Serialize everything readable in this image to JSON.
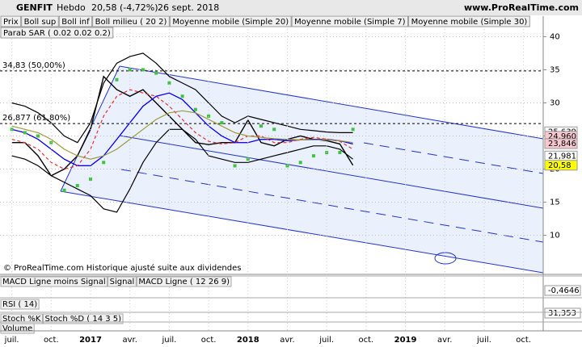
{
  "header": {
    "symbol": "GENFIT",
    "period": "Hebdo",
    "last": "20,58 (-4,72%)",
    "date": "26 sept. 2018",
    "site": "www.ProRealTime.com"
  },
  "footer": "© ProRealTime.com Historique ajusté suite aux dividendes",
  "chart_data": {
    "type": "line",
    "x": [
      0,
      1,
      2,
      3,
      4,
      5,
      6,
      7,
      8,
      9,
      10,
      11,
      12,
      13,
      14,
      15,
      16,
      17,
      18,
      19,
      20,
      21,
      22,
      23,
      24,
      25,
      26
    ],
    "xlim": [
      -0.9,
      40.5
    ],
    "xticks": [
      {
        "value": 0,
        "label": "juil."
      },
      {
        "value": 3,
        "label": "oct."
      },
      {
        "value": 6,
        "label": "2017"
      },
      {
        "value": 9,
        "label": "avr."
      },
      {
        "value": 12,
        "label": "juil."
      },
      {
        "value": 15,
        "label": "oct."
      },
      {
        "value": 18,
        "label": "2018"
      },
      {
        "value": 21,
        "label": "avr."
      },
      {
        "value": 24,
        "label": "juil."
      },
      {
        "value": 27,
        "label": "oct."
      },
      {
        "value": 30,
        "label": "2019"
      },
      {
        "value": 33,
        "label": "avr."
      },
      {
        "value": 36,
        "label": "juil."
      },
      {
        "value": 39,
        "label": "oct."
      }
    ],
    "ylim": [
      4.1,
      43.1
    ],
    "yticks": [
      10,
      15,
      20,
      25,
      30,
      35,
      40
    ],
    "grid": true,
    "series": [
      {
        "name": "Prix",
        "color": "#000000",
        "values": [
          24,
          24,
          22,
          19,
          20,
          22,
          26,
          34,
          32,
          31,
          32,
          30,
          28,
          26,
          24,
          23.7,
          24,
          24,
          27.4,
          24,
          23.5,
          24.5,
          25,
          24.5,
          24.3,
          23.8,
          20.58
        ]
      },
      {
        "name": "Boll sup",
        "color": "#000000",
        "values": [
          30,
          29.5,
          28.5,
          27,
          25,
          24,
          27,
          33,
          36,
          37,
          37.5,
          36,
          34,
          33,
          32,
          30,
          28,
          27,
          28,
          27.5,
          27,
          26.5,
          26,
          25.8,
          25.6,
          25.5,
          25.5
        ]
      },
      {
        "name": "Boll inf",
        "color": "#000000",
        "values": [
          22,
          21.5,
          20.5,
          19,
          18,
          17,
          16,
          14,
          13.5,
          17,
          21,
          24,
          26,
          26,
          24.5,
          22,
          21.5,
          21,
          21,
          21.5,
          22,
          22.5,
          23,
          23.5,
          23.5,
          23,
          21.5
        ]
      },
      {
        "name": "Boll milieu ( 20 2)",
        "color": "#8a2be2",
        "values": [
          26,
          25.5,
          24.5,
          23,
          21.5,
          20.5,
          20.5,
          22,
          24.5,
          27,
          29.5,
          31,
          31.5,
          30.5,
          28.5,
          26.5,
          25,
          24,
          24,
          24.5,
          24.5,
          24.3,
          24.4,
          24.5,
          24.5,
          24.3,
          23.8
        ]
      },
      {
        "name": "Moyenne mobile (Simple 20)",
        "color": "#0000ff",
        "values": [
          26,
          25.5,
          24.5,
          23,
          21.5,
          20.5,
          20.5,
          22,
          24.5,
          27,
          29.5,
          31,
          31.5,
          30.5,
          28.5,
          26.5,
          25,
          24,
          24,
          24.5,
          24.5,
          24.3,
          24.4,
          24.5,
          24.5,
          24.3,
          23.8
        ]
      },
      {
        "name": "Moyenne mobile (Simple 7)",
        "color": "#e0303a",
        "dashed": true,
        "values": [
          24.5,
          24,
          23,
          21,
          20,
          20.5,
          23,
          28,
          31,
          32,
          31.5,
          31,
          29.5,
          27.5,
          25.5,
          24.2,
          23.8,
          24,
          25,
          25,
          24,
          24,
          24.5,
          24.8,
          24.5,
          24.2,
          23
        ]
      },
      {
        "name": "Moyenne mobile (Simple 30)",
        "color": "#9a9a3a",
        "values": [
          26.5,
          26,
          25.5,
          24.5,
          23,
          22,
          21.5,
          22,
          23,
          24.5,
          26,
          27.5,
          28.5,
          28.8,
          28.5,
          27.5,
          26.5,
          25.5,
          25,
          24.8,
          24.6,
          24.5,
          24.4,
          24.4,
          24.4,
          24.3,
          24
        ]
      },
      {
        "name": "Parab SAR ( 0.02 0.02 0.2)",
        "color": "#3cc43c",
        "dots": true,
        "values": [
          26,
          25.5,
          25,
          24,
          16.8,
          17.5,
          18.5,
          21,
          33.5,
          35,
          35,
          34.5,
          33,
          31,
          29,
          28,
          27,
          20.5,
          21.5,
          26.5,
          26,
          20.5,
          21,
          22,
          22.5,
          22.5,
          26
        ]
      }
    ],
    "levels": [
      {
        "value": 34.83,
        "label": "34,83 (50,00%)"
      },
      {
        "value": 26.877,
        "label": "26,877 (61,80%)"
      }
    ],
    "price_labels": [
      {
        "value": 25.639,
        "label": "25,639",
        "color": "#ffffff"
      },
      {
        "value": 24.96,
        "label": "24,960",
        "color": "#f8c8d0"
      },
      {
        "value": 23.846,
        "label": "23,846",
        "color": "#f8c8d0"
      },
      {
        "value": 21.981,
        "label": "21,981",
        "color": "#ffffff"
      },
      {
        "value": 20.58,
        "label": "20,58",
        "color": "#ffff00"
      }
    ]
  },
  "panels": [
    {
      "labels": [
        "MACD Ligne moins Signal",
        "Signal",
        "MACD Ligne ( 12 26 9)"
      ],
      "colors": [
        "#e05080",
        "#e03030",
        "#0000cc"
      ],
      "value_label": "-0,4646"
    },
    {
      "labels": [
        "RSI ( 14)"
      ],
      "colors": [
        "#000000"
      ],
      "value_label": "31,353"
    },
    {
      "labels": [
        "Stoch %K",
        "Stoch %D ( 14 3 5)"
      ],
      "colors": [
        "#000000",
        "#e03030"
      ]
    },
    {
      "labels": [
        "Volume"
      ],
      "colors": [
        "#000000"
      ]
    }
  ]
}
